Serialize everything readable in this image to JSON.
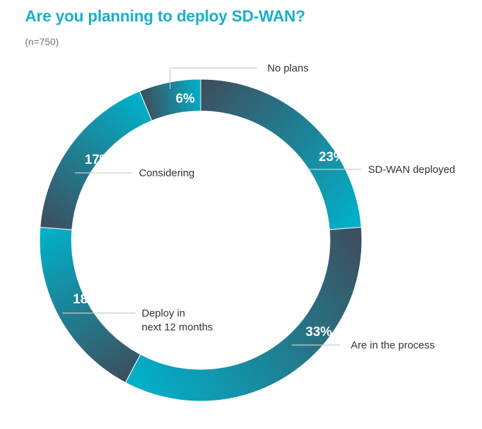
{
  "chart_data": {
    "type": "pie",
    "variant": "donut",
    "title": "Are you planning to deploy SD-WAN?",
    "subtitle": "(n=750)",
    "slices": [
      {
        "label": "SD-WAN deployed",
        "value": 23,
        "value_label": "23%"
      },
      {
        "label": "Are in the process",
        "value": 33,
        "value_label": "33%"
      },
      {
        "label": "Deploy in next 12 months",
        "label_lines": [
          "Deploy in",
          "next 12 months"
        ],
        "value": 18,
        "value_label": "18%"
      },
      {
        "label": "Considering",
        "value": 17,
        "value_label": "17%"
      },
      {
        "label": "No plans",
        "value": 6,
        "value_label": "6%"
      }
    ],
    "colors": {
      "dark": "#3e4d5c",
      "teal": "#00b3cc",
      "title": "#1aafc9"
    }
  }
}
